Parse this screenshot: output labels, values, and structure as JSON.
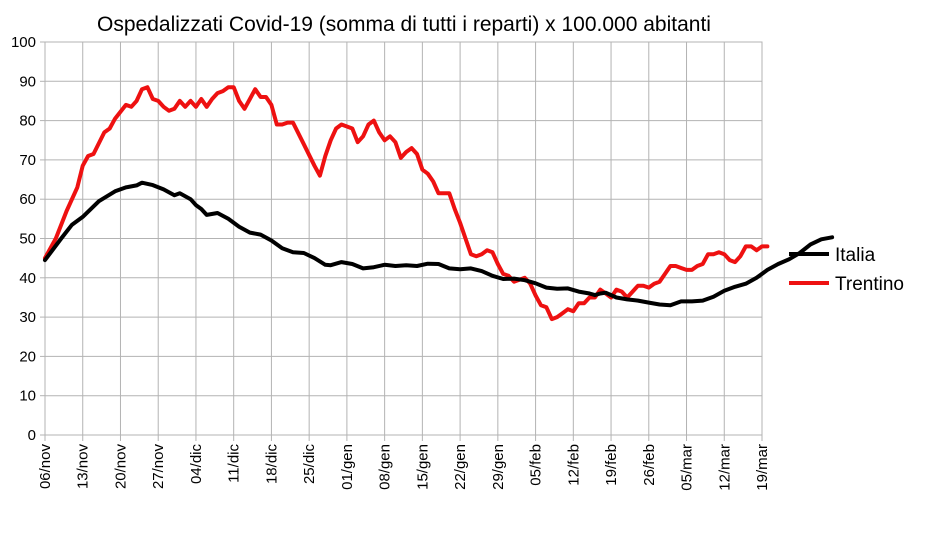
{
  "chart_data": {
    "type": "line",
    "title": "Ospedalizzati Covid-19 (somma di tutti i reparti) x 100.000 abitanti",
    "xlabel": "",
    "ylabel": "",
    "ylim": [
      0,
      100
    ],
    "yticks": [
      0,
      10,
      20,
      30,
      40,
      50,
      60,
      70,
      80,
      90,
      100
    ],
    "grid": true,
    "legend_position": "right",
    "x_tick_labels": [
      "06/nov",
      "13/nov",
      "20/nov",
      "27/nov",
      "04/dic",
      "11/dic",
      "18/dic",
      "25/dic",
      "01/gen",
      "08/gen",
      "15/gen",
      "22/gen",
      "29/gen",
      "05/feb",
      "12/feb",
      "19/feb",
      "26/feb",
      "05/mar",
      "12/mar",
      "19/mar"
    ],
    "x_start": "06/nov",
    "x_days": 133,
    "series": [
      {
        "name": "Italia",
        "color": "#000000",
        "points": [
          [
            0,
            44.5
          ],
          [
            3,
            50
          ],
          [
            5,
            53.5
          ],
          [
            7,
            55.5
          ],
          [
            10,
            59.5
          ],
          [
            13,
            62
          ],
          [
            15,
            63
          ],
          [
            17,
            63.5
          ],
          [
            18,
            64.2
          ],
          [
            20,
            63.6
          ],
          [
            22,
            62.5
          ],
          [
            24,
            61
          ],
          [
            25,
            61.5
          ],
          [
            27,
            60
          ],
          [
            28,
            58.5
          ],
          [
            29,
            57.5
          ],
          [
            30,
            56
          ],
          [
            32,
            56.5
          ],
          [
            34,
            55
          ],
          [
            36,
            53
          ],
          [
            38,
            51.5
          ],
          [
            40,
            51
          ],
          [
            42,
            49.5
          ],
          [
            44,
            47.5
          ],
          [
            46,
            46.5
          ],
          [
            48,
            46.3
          ],
          [
            50,
            45
          ],
          [
            52,
            43.3
          ],
          [
            53,
            43.2
          ],
          [
            55,
            44
          ],
          [
            57,
            43.5
          ],
          [
            59,
            42.4
          ],
          [
            61,
            42.7
          ],
          [
            63,
            43.3
          ],
          [
            65,
            43
          ],
          [
            67,
            43.2
          ],
          [
            69,
            43
          ],
          [
            71,
            43.6
          ],
          [
            73,
            43.5
          ],
          [
            75,
            42.4
          ],
          [
            77,
            42.2
          ],
          [
            79,
            42.4
          ],
          [
            81,
            41.7
          ],
          [
            83,
            40.5
          ],
          [
            85,
            39.7
          ],
          [
            87,
            39.8
          ],
          [
            89,
            39.4
          ],
          [
            91,
            38.6
          ],
          [
            93,
            37.5
          ],
          [
            95,
            37.2
          ],
          [
            97,
            37.3
          ],
          [
            99,
            36.5
          ],
          [
            101,
            36
          ],
          [
            102,
            35.6
          ],
          [
            103,
            36
          ],
          [
            104,
            36.2
          ],
          [
            106,
            35
          ],
          [
            108,
            34.5
          ],
          [
            110,
            34.2
          ],
          [
            112,
            33.7
          ],
          [
            114,
            33.2
          ],
          [
            116,
            33
          ],
          [
            118,
            34
          ],
          [
            120,
            34
          ],
          [
            122,
            34.2
          ],
          [
            124,
            35.2
          ],
          [
            126,
            36.7
          ],
          [
            128,
            37.7
          ],
          [
            130,
            38.5
          ],
          [
            132,
            40
          ],
          [
            134,
            42
          ],
          [
            136,
            43.5
          ],
          [
            138,
            44.7
          ],
          [
            140,
            46.3
          ],
          [
            142,
            48.5
          ],
          [
            144,
            49.8
          ],
          [
            146,
            50.3
          ]
        ]
      },
      {
        "name": "Trentino",
        "color": "#ee1111",
        "points": [
          [
            0,
            45
          ],
          [
            2,
            50
          ],
          [
            4,
            57
          ],
          [
            6,
            63
          ],
          [
            7,
            68.5
          ],
          [
            8,
            71
          ],
          [
            9,
            71.5
          ],
          [
            11,
            77
          ],
          [
            12,
            78
          ],
          [
            13,
            80.5
          ],
          [
            15,
            84
          ],
          [
            16,
            83.5
          ],
          [
            17,
            85
          ],
          [
            18,
            88
          ],
          [
            19,
            88.5
          ],
          [
            20,
            85.5
          ],
          [
            21,
            85
          ],
          [
            22,
            83.5
          ],
          [
            23,
            82.5
          ],
          [
            24,
            83
          ],
          [
            25,
            85
          ],
          [
            26,
            83.5
          ],
          [
            27,
            85
          ],
          [
            28,
            83.5
          ],
          [
            29,
            85.5
          ],
          [
            30,
            83.5
          ],
          [
            31,
            85.5
          ],
          [
            32,
            87
          ],
          [
            33,
            87.5
          ],
          [
            34,
            88.5
          ],
          [
            35,
            88.5
          ],
          [
            36,
            85
          ],
          [
            37,
            83
          ],
          [
            38,
            85.5
          ],
          [
            39,
            88
          ],
          [
            40,
            86
          ],
          [
            41,
            86
          ],
          [
            42,
            84
          ],
          [
            43,
            79
          ],
          [
            44,
            79
          ],
          [
            45,
            79.5
          ],
          [
            46,
            79.5
          ],
          [
            48,
            74
          ],
          [
            50,
            68.5
          ],
          [
            51,
            66
          ],
          [
            52,
            71
          ],
          [
            53,
            75
          ],
          [
            54,
            78
          ],
          [
            55,
            79
          ],
          [
            56,
            78.5
          ],
          [
            57,
            78
          ],
          [
            58,
            74.5
          ],
          [
            59,
            76
          ],
          [
            60,
            79
          ],
          [
            61,
            80
          ],
          [
            62,
            77
          ],
          [
            63,
            75
          ],
          [
            64,
            76
          ],
          [
            65,
            74.5
          ],
          [
            66,
            70.5
          ],
          [
            67,
            72
          ],
          [
            68,
            73
          ],
          [
            69,
            71.5
          ],
          [
            70,
            67.5
          ],
          [
            71,
            66.5
          ],
          [
            72,
            64.5
          ],
          [
            73,
            61.5
          ],
          [
            74,
            61.5
          ],
          [
            75,
            61.5
          ],
          [
            76,
            57.5
          ],
          [
            77,
            54
          ],
          [
            78,
            50
          ],
          [
            79,
            46
          ],
          [
            80,
            45.5
          ],
          [
            81,
            46
          ],
          [
            82,
            47
          ],
          [
            83,
            46.5
          ],
          [
            84,
            43.5
          ],
          [
            85,
            41
          ],
          [
            86,
            40.5
          ],
          [
            87,
            39
          ],
          [
            88,
            39.5
          ],
          [
            89,
            40
          ],
          [
            90,
            38.5
          ],
          [
            91,
            35.5
          ],
          [
            92,
            33
          ],
          [
            93,
            32.5
          ],
          [
            94,
            29.5
          ],
          [
            95,
            30
          ],
          [
            96,
            31
          ],
          [
            97,
            32
          ],
          [
            98,
            31.5
          ],
          [
            99,
            33.5
          ],
          [
            100,
            33.5
          ],
          [
            101,
            35
          ],
          [
            102,
            35
          ],
          [
            103,
            37
          ],
          [
            104,
            36
          ],
          [
            105,
            35
          ],
          [
            106,
            37
          ],
          [
            107,
            36.5
          ],
          [
            108,
            35
          ],
          [
            109,
            36.5
          ],
          [
            110,
            38
          ],
          [
            111,
            38
          ],
          [
            112,
            37.5
          ],
          [
            113,
            38.5
          ],
          [
            114,
            39
          ],
          [
            115,
            41
          ],
          [
            116,
            43
          ],
          [
            117,
            43
          ],
          [
            118,
            42.5
          ],
          [
            119,
            42
          ],
          [
            120,
            42
          ],
          [
            121,
            43
          ],
          [
            122,
            43.5
          ],
          [
            123,
            46
          ],
          [
            124,
            46
          ],
          [
            125,
            46.5
          ],
          [
            126,
            46
          ],
          [
            127,
            44.5
          ],
          [
            128,
            44
          ],
          [
            129,
            45.5
          ],
          [
            130,
            48
          ],
          [
            131,
            48
          ],
          [
            132,
            47
          ],
          [
            133,
            48
          ],
          [
            134,
            48
          ]
        ]
      }
    ]
  }
}
